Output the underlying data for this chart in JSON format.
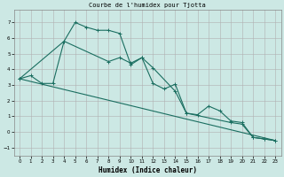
{
  "title": "Courbe de l'humidex pour Tjotta",
  "xlabel": "Humidex (Indice chaleur)",
  "background_color": "#cce8e4",
  "grid_color": "#b0b0b0",
  "line_color": "#1a6e60",
  "xlim": [
    -0.5,
    23.5
  ],
  "ylim": [
    -1.5,
    7.8
  ],
  "yticks": [
    -1,
    0,
    1,
    2,
    3,
    4,
    5,
    6,
    7
  ],
  "xticks": [
    0,
    1,
    2,
    3,
    4,
    5,
    6,
    7,
    8,
    9,
    10,
    11,
    12,
    13,
    14,
    15,
    16,
    17,
    18,
    19,
    20,
    21,
    22,
    23
  ],
  "series1_x": [
    0,
    1,
    2,
    3,
    4,
    5,
    6,
    7,
    8,
    9,
    10,
    11,
    12,
    13,
    14,
    15,
    16,
    17,
    18,
    19,
    20,
    21,
    22,
    23
  ],
  "series1_y": [
    3.4,
    3.6,
    3.1,
    3.1,
    5.8,
    7.0,
    6.7,
    6.5,
    6.5,
    6.3,
    4.3,
    4.75,
    3.1,
    2.75,
    3.05,
    1.2,
    1.1,
    1.65,
    1.35,
    0.7,
    0.6,
    -0.35,
    -0.45,
    -0.55
  ],
  "series2_x": [
    0,
    4,
    8,
    9,
    10,
    11,
    12,
    14,
    15,
    19,
    20,
    21,
    22,
    23
  ],
  "series2_y": [
    3.4,
    5.8,
    4.5,
    4.75,
    4.4,
    4.75,
    4.1,
    2.6,
    1.2,
    0.6,
    0.5,
    -0.35,
    -0.45,
    -0.55
  ],
  "series3_x": [
    0,
    23
  ],
  "series3_y": [
    3.4,
    -0.55
  ]
}
